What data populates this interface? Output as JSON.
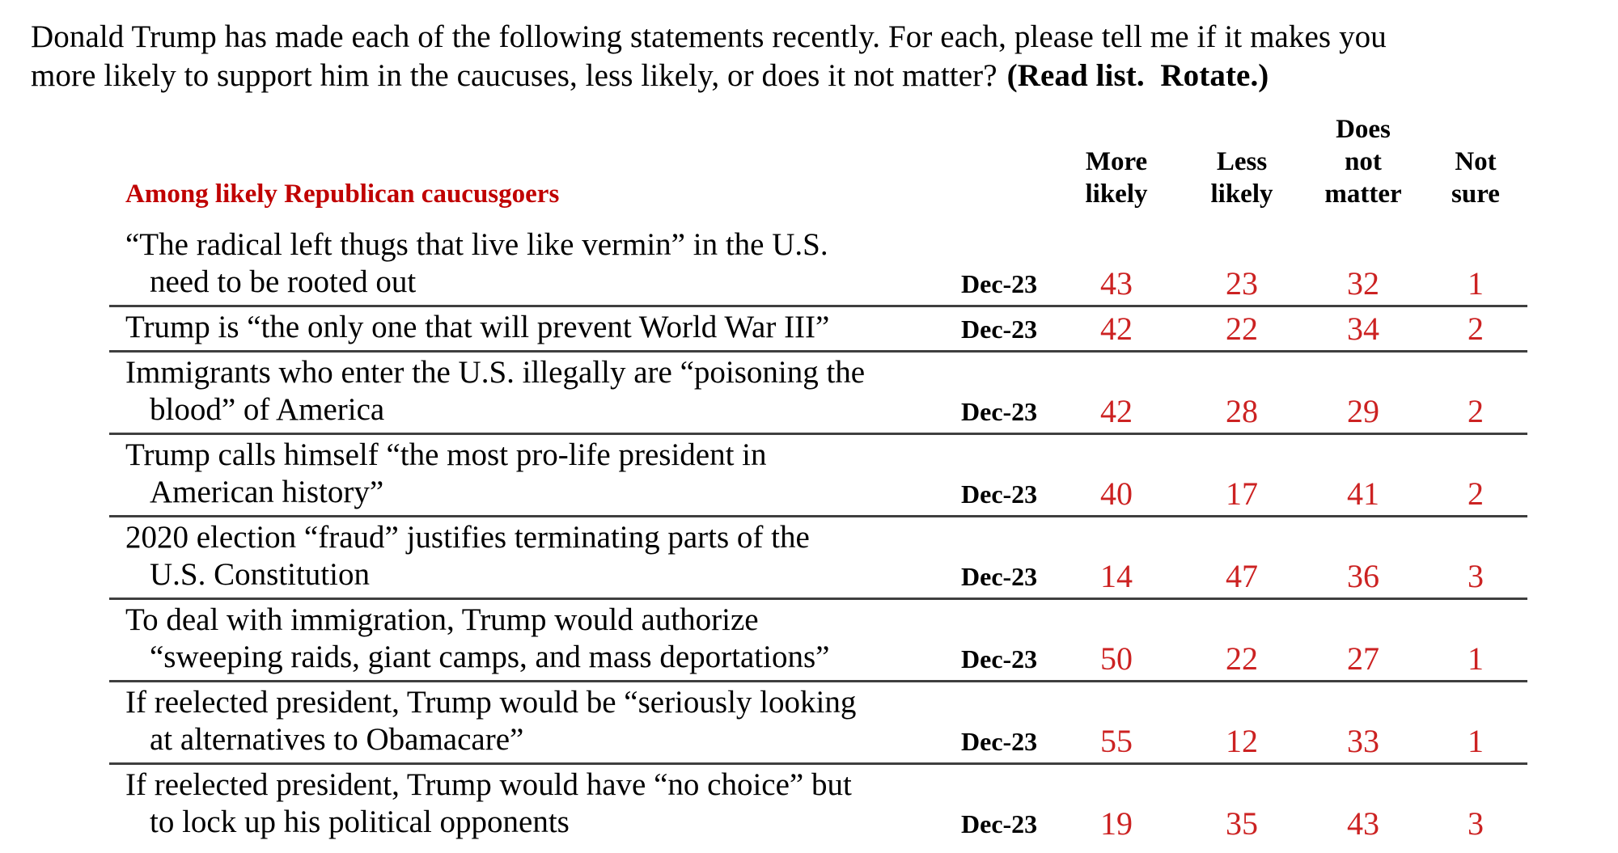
{
  "question": {
    "text": "Donald Trump has made each of the following statements recently. For each, please tell me if it makes you\nmore likely to support him in the caucuses, less likely, or does it not matter?",
    "instruction": "(Read list.  Rotate.)"
  },
  "table": {
    "population_label": "Among likely Republican caucusgoers",
    "columns": {
      "more_likely": "More\nlikely",
      "less_likely": "Less\nlikely",
      "does_not_matter": "Does\nnot\nmatter",
      "not_sure": "Not\nsure"
    },
    "rows": [
      {
        "statement": "“The radical left thugs that live like vermin” in the U.S.\nneed to be rooted out",
        "date": "Dec-23",
        "values": [
          43,
          23,
          32,
          1
        ]
      },
      {
        "statement": "Trump is “the only one that will prevent World War III”",
        "date": "Dec-23",
        "values": [
          42,
          22,
          34,
          2
        ]
      },
      {
        "statement": "Immigrants who enter the U.S. illegally are “poisoning the\nblood” of America",
        "date": "Dec-23",
        "values": [
          42,
          28,
          29,
          2
        ]
      },
      {
        "statement": "Trump calls himself “the most pro-life president in\nAmerican history”",
        "date": "Dec-23",
        "values": [
          40,
          17,
          41,
          2
        ]
      },
      {
        "statement": "2020 election “fraud” justifies terminating parts of the\nU.S. Constitution",
        "date": "Dec-23",
        "values": [
          14,
          47,
          36,
          3
        ]
      },
      {
        "statement": "To deal with immigration, Trump would authorize\n“sweeping raids, giant camps, and mass deportations”",
        "date": "Dec-23",
        "values": [
          50,
          22,
          27,
          1
        ]
      },
      {
        "statement": "If reelected president, Trump would be “seriously looking\nat alternatives to Obamacare”",
        "date": "Dec-23",
        "values": [
          55,
          12,
          33,
          1
        ]
      },
      {
        "statement": "If reelected president, Trump would have “no choice” but\nto lock up his political opponents",
        "date": "Dec-23",
        "values": [
          19,
          35,
          43,
          3
        ]
      }
    ]
  },
  "colors": {
    "heading_red": "#C00000",
    "value_red": "#CC2222",
    "rule_gray": "#3F3F3F"
  }
}
